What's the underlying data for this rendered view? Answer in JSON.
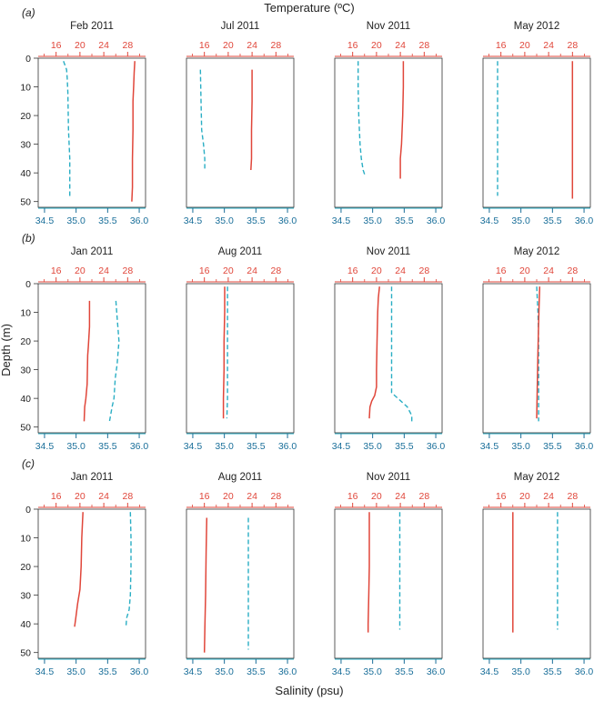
{
  "figure": {
    "top_axis_label": "Temperature (ºC)",
    "left_axis_label": "Depth (m)",
    "bottom_axis_label": "Salinity (psu)",
    "temperature_color": "#e0463a",
    "salinity_color": "#2aaec4",
    "axis_color": "#1a6f9a"
  },
  "chart_data": {
    "type": "line",
    "temperature_axis": {
      "range": [
        13,
        31
      ],
      "ticks": [
        16,
        20,
        24,
        28
      ],
      "position": "top"
    },
    "salinity_axis": {
      "range": [
        34.4,
        36.1
      ],
      "ticks": [
        34.5,
        35.0,
        35.5,
        36.0
      ],
      "tick_labels": [
        "34.5",
        "35.0",
        "35.5",
        "36.0"
      ],
      "position": "bottom"
    },
    "depth_axis": {
      "range": [
        0,
        52
      ],
      "ticks": [
        0,
        10,
        20,
        30,
        40,
        50
      ],
      "inverted": true,
      "position": "left"
    },
    "rows": [
      {
        "label": "(a)",
        "panels": [
          {
            "title": "Feb 2011",
            "temperature": [
              [
                29.2,
                1
              ],
              [
                29.1,
                5
              ],
              [
                29.0,
                10
              ],
              [
                28.9,
                15
              ],
              [
                28.9,
                25
              ],
              [
                28.8,
                35
              ],
              [
                28.8,
                45
              ],
              [
                28.7,
                50
              ]
            ],
            "salinity": [
              [
                34.8,
                1
              ],
              [
                34.85,
                4
              ],
              [
                34.86,
                7
              ],
              [
                34.87,
                12
              ],
              [
                34.88,
                25
              ],
              [
                34.9,
                35
              ],
              [
                34.9,
                45
              ],
              [
                34.9,
                49
              ]
            ]
          },
          {
            "title": "Jul 2011",
            "temperature": [
              [
                24.0,
                4
              ],
              [
                24.0,
                15
              ],
              [
                23.9,
                25
              ],
              [
                23.9,
                35
              ],
              [
                23.8,
                39
              ]
            ],
            "salinity": [
              [
                34.62,
                4
              ],
              [
                34.63,
                15
              ],
              [
                34.64,
                25
              ],
              [
                34.67,
                30
              ],
              [
                34.69,
                35
              ],
              [
                34.69,
                39
              ]
            ]
          },
          {
            "title": "Nov 2011",
            "temperature": [
              [
                24.5,
                1
              ],
              [
                24.5,
                10
              ],
              [
                24.4,
                20
              ],
              [
                24.2,
                30
              ],
              [
                24.0,
                35
              ],
              [
                24.0,
                42
              ]
            ],
            "salinity": [
              [
                34.77,
                1
              ],
              [
                34.77,
                10
              ],
              [
                34.78,
                20
              ],
              [
                34.8,
                30
              ],
              [
                34.82,
                35
              ],
              [
                34.85,
                39
              ],
              [
                34.88,
                41
              ]
            ]
          },
          {
            "title": "May 2012",
            "temperature": [
              [
                28.0,
                1
              ],
              [
                28.0,
                10
              ],
              [
                28.0,
                20
              ],
              [
                28.0,
                30
              ],
              [
                28.0,
                40
              ],
              [
                28.0,
                49
              ]
            ],
            "salinity": [
              [
                34.63,
                1
              ],
              [
                34.63,
                10
              ],
              [
                34.63,
                20
              ],
              [
                34.63,
                30
              ],
              [
                34.63,
                40
              ],
              [
                34.63,
                48
              ]
            ]
          }
        ]
      },
      {
        "label": "(b)",
        "panels": [
          {
            "title": "Jan 2011",
            "temperature": [
              [
                21.6,
                6
              ],
              [
                21.6,
                15
              ],
              [
                21.4,
                22
              ],
              [
                21.3,
                25
              ],
              [
                21.2,
                35
              ],
              [
                21.0,
                40
              ],
              [
                20.8,
                43
              ],
              [
                20.7,
                48
              ]
            ],
            "salinity": [
              [
                35.63,
                6
              ],
              [
                35.65,
                12
              ],
              [
                35.68,
                20
              ],
              [
                35.65,
                28
              ],
              [
                35.62,
                33
              ],
              [
                35.6,
                40
              ],
              [
                35.57,
                43
              ],
              [
                35.53,
                48
              ]
            ]
          },
          {
            "title": "Aug 2011",
            "temperature": [
              [
                19.4,
                1
              ],
              [
                19.4,
                10
              ],
              [
                19.3,
                20
              ],
              [
                19.3,
                30
              ],
              [
                19.2,
                40
              ],
              [
                19.2,
                47
              ]
            ],
            "salinity": [
              [
                35.05,
                1
              ],
              [
                35.05,
                10
              ],
              [
                35.05,
                20
              ],
              [
                35.05,
                30
              ],
              [
                35.05,
                40
              ],
              [
                35.04,
                47
              ]
            ]
          },
          {
            "title": "Nov 2011",
            "temperature": [
              [
                20.5,
                1
              ],
              [
                20.3,
                5
              ],
              [
                20.2,
                10
              ],
              [
                20.1,
                20
              ],
              [
                20.0,
                30
              ],
              [
                20.0,
                36
              ],
              [
                19.7,
                39
              ],
              [
                19.2,
                41
              ],
              [
                18.9,
                43
              ],
              [
                18.8,
                47
              ]
            ],
            "salinity": [
              [
                35.3,
                1
              ],
              [
                35.3,
                10
              ],
              [
                35.3,
                20
              ],
              [
                35.3,
                30
              ],
              [
                35.3,
                38
              ],
              [
                35.35,
                39
              ],
              [
                35.45,
                41
              ],
              [
                35.55,
                43
              ],
              [
                35.62,
                46
              ],
              [
                35.62,
                48
              ]
            ]
          },
          {
            "title": "May 2012",
            "temperature": [
              [
                22.5,
                1
              ],
              [
                22.4,
                8
              ],
              [
                22.3,
                15
              ],
              [
                22.2,
                25
              ],
              [
                22.1,
                35
              ],
              [
                22.0,
                47
              ]
            ],
            "salinity": [
              [
                35.25,
                1
              ],
              [
                35.27,
                10
              ],
              [
                35.28,
                20
              ],
              [
                35.28,
                30
              ],
              [
                35.28,
                40
              ],
              [
                35.28,
                48
              ]
            ]
          }
        ]
      },
      {
        "label": "(c)",
        "panels": [
          {
            "title": "Jan 2011",
            "temperature": [
              [
                20.5,
                1
              ],
              [
                20.3,
                10
              ],
              [
                20.2,
                20
              ],
              [
                20.0,
                28
              ],
              [
                19.6,
                33
              ],
              [
                19.3,
                38
              ],
              [
                19.1,
                41
              ]
            ],
            "salinity": [
              [
                35.86,
                1
              ],
              [
                35.87,
                10
              ],
              [
                35.87,
                20
              ],
              [
                35.86,
                30
              ],
              [
                35.84,
                35
              ],
              [
                35.8,
                38
              ],
              [
                35.79,
                41
              ]
            ]
          },
          {
            "title": "Aug 2011",
            "temperature": [
              [
                16.4,
                3
              ],
              [
                16.3,
                15
              ],
              [
                16.2,
                30
              ],
              [
                16.1,
                40
              ],
              [
                16.0,
                50
              ]
            ],
            "salinity": [
              [
                35.38,
                3
              ],
              [
                35.38,
                15
              ],
              [
                35.38,
                30
              ],
              [
                35.38,
                40
              ],
              [
                35.38,
                49
              ]
            ]
          },
          {
            "title": "Nov 2011",
            "temperature": [
              [
                18.8,
                1
              ],
              [
                18.8,
                10
              ],
              [
                18.8,
                20
              ],
              [
                18.7,
                30
              ],
              [
                18.6,
                40
              ],
              [
                18.6,
                43
              ]
            ],
            "salinity": [
              [
                35.43,
                1
              ],
              [
                35.43,
                10
              ],
              [
                35.43,
                20
              ],
              [
                35.43,
                30
              ],
              [
                35.43,
                42
              ]
            ]
          },
          {
            "title": "May 2012",
            "temperature": [
              [
                18.0,
                1
              ],
              [
                18.0,
                10
              ],
              [
                18.0,
                20
              ],
              [
                18.0,
                30
              ],
              [
                18.0,
                43
              ]
            ],
            "salinity": [
              [
                35.58,
                1
              ],
              [
                35.58,
                10
              ],
              [
                35.58,
                20
              ],
              [
                35.58,
                30
              ],
              [
                35.58,
                42
              ]
            ]
          }
        ]
      }
    ]
  }
}
